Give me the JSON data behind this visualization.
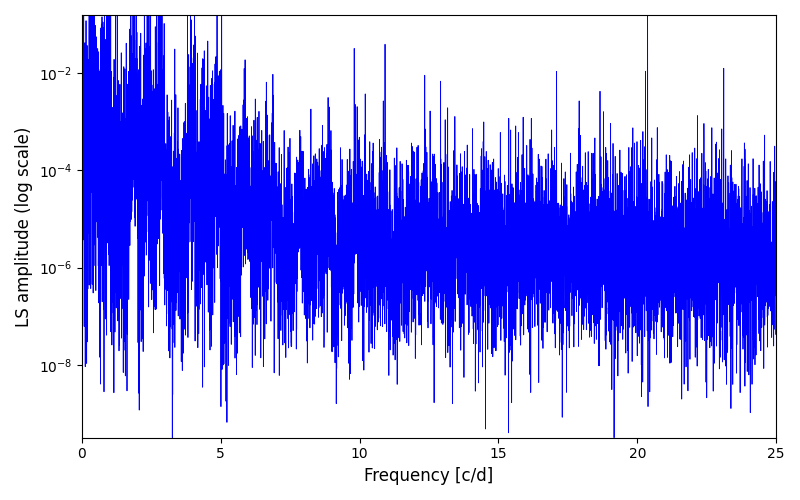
{
  "title": "",
  "xlabel": "Frequency [c/d]",
  "ylabel": "LS amplitude (log scale)",
  "xlim": [
    0,
    25
  ],
  "ylim_log_min": -9.5,
  "ylim_log_max": -0.8,
  "line_color": "#0000ff",
  "line_width": 0.6,
  "background_color": "#ffffff",
  "figsize": [
    8.0,
    5.0
  ],
  "dpi": 100,
  "seed": 12345,
  "n_points": 8000,
  "freq_max": 25.0
}
